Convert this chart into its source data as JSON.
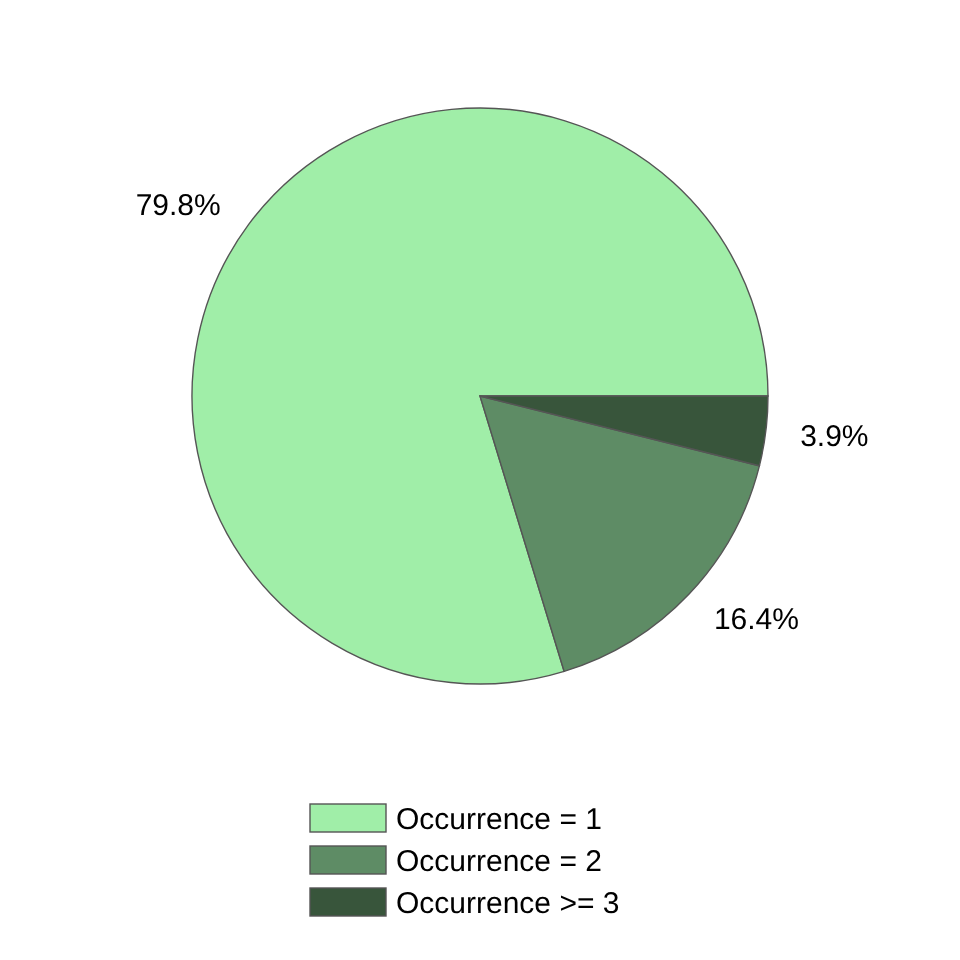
{
  "chart_data": {
    "type": "pie",
    "categories": [
      "Occurrence = 1",
      "Occurrence = 2",
      "Occurrence >= 3"
    ],
    "values": [
      79.8,
      16.4,
      3.9
    ],
    "value_labels": [
      "79.8%",
      "16.4%",
      "3.9%"
    ],
    "colors": [
      "#a0eea8",
      "#5e8c65",
      "#38553b"
    ],
    "legend": "bottom"
  }
}
